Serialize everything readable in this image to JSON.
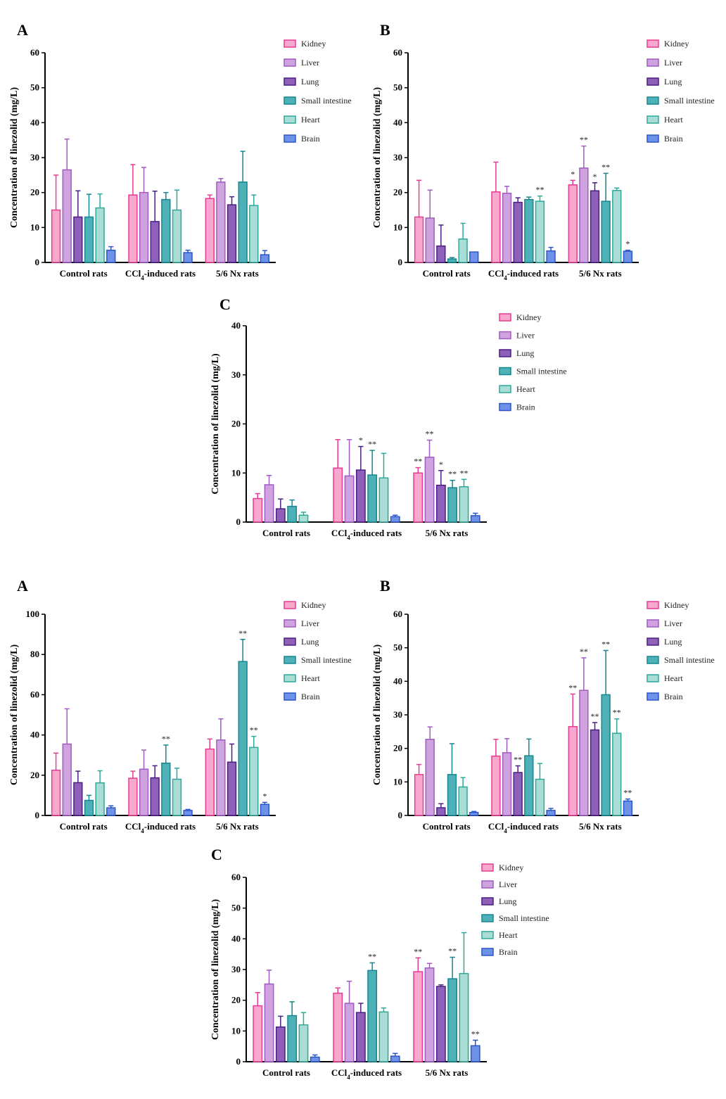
{
  "figure_sets": [
    {
      "set": "top"
    },
    {
      "set": "bottom"
    }
  ],
  "colors": {
    "Kidney": {
      "fill": "#f7a8cc",
      "stroke": "#e93b93"
    },
    "Liver": {
      "fill": "#cfa3df",
      "stroke": "#a05bc0"
    },
    "Lung": {
      "fill": "#8f60b8",
      "stroke": "#4a1e85"
    },
    "Small intestine": {
      "fill": "#4fb1b8",
      "stroke": "#16878f"
    },
    "Heart": {
      "fill": "#a9ddd6",
      "stroke": "#2fa89a"
    },
    "Brain": {
      "fill": "#6e92e8",
      "stroke": "#2a56c8"
    }
  },
  "chart_data": [
    {
      "panel": "A",
      "type": "bar",
      "ylabel": "Concentration of linezolid (mg/L)",
      "ylim": [
        0,
        60
      ],
      "yticks": [
        0,
        10,
        20,
        30,
        40,
        50,
        60
      ],
      "categories": [
        "Control rats",
        "CCl4-induced rats",
        "5/6 Nx rats"
      ],
      "series": [
        {
          "name": "Kidney",
          "values": [
            15,
            19.3,
            18.3
          ],
          "errors": [
            10,
            8.7,
            1
          ],
          "stars": [
            "",
            "",
            ""
          ]
        },
        {
          "name": "Liver",
          "values": [
            26.5,
            20,
            23
          ],
          "errors": [
            8.8,
            7.2,
            1
          ],
          "stars": [
            "",
            "",
            ""
          ]
        },
        {
          "name": "Lung",
          "values": [
            13,
            11.7,
            16.5
          ],
          "errors": [
            7.5,
            8.7,
            2.3
          ],
          "stars": [
            "",
            "",
            ""
          ]
        },
        {
          "name": "Small intestine",
          "values": [
            13,
            18,
            23
          ],
          "errors": [
            6.5,
            2,
            8.8
          ],
          "stars": [
            "",
            "",
            ""
          ]
        },
        {
          "name": "Heart",
          "values": [
            15.6,
            15,
            16.3
          ],
          "errors": [
            4,
            5.7,
            3
          ],
          "stars": [
            "",
            "",
            ""
          ]
        },
        {
          "name": "Brain",
          "values": [
            3.5,
            2.8,
            2.2
          ],
          "errors": [
            1,
            0.7,
            1.2
          ],
          "stars": [
            "",
            "",
            ""
          ]
        }
      ]
    },
    {
      "panel": "B",
      "type": "bar",
      "ylabel": "Concentration of linezolid (mg/L)",
      "ylim": [
        0,
        60
      ],
      "yticks": [
        0,
        10,
        20,
        30,
        40,
        50,
        60
      ],
      "categories": [
        "Control rats",
        "CCl4-induced rats",
        "5/6 Nx rats"
      ],
      "series": [
        {
          "name": "Kidney",
          "values": [
            13,
            20.2,
            22.2
          ],
          "errors": [
            10.5,
            8.5,
            1.3
          ],
          "stars": [
            "",
            "",
            "*"
          ]
        },
        {
          "name": "Liver",
          "values": [
            12.7,
            19.8,
            27
          ],
          "errors": [
            8,
            2,
            6.3
          ],
          "stars": [
            "",
            "",
            "**"
          ]
        },
        {
          "name": "Lung",
          "values": [
            4.7,
            17.2,
            20.5
          ],
          "errors": [
            6,
            1.3,
            2.3
          ],
          "stars": [
            "",
            "",
            "*"
          ]
        },
        {
          "name": "Small intestine",
          "values": [
            1,
            18,
            17.5
          ],
          "errors": [
            0.4,
            0.7,
            8
          ],
          "stars": [
            "",
            "",
            "**"
          ]
        },
        {
          "name": "Heart",
          "values": [
            6.7,
            17.5,
            20.6
          ],
          "errors": [
            4.5,
            1.5,
            0.7
          ],
          "stars": [
            "",
            "**",
            ""
          ]
        },
        {
          "name": "Brain",
          "values": [
            3,
            3.3,
            3.2
          ],
          "errors": [
            0,
            1,
            0.3
          ],
          "stars": [
            "",
            "",
            "*"
          ]
        }
      ]
    },
    {
      "panel": "C",
      "type": "bar",
      "ylabel": "Concentration of linezolid (mg/L)",
      "ylim": [
        0,
        40
      ],
      "yticks": [
        0,
        10,
        20,
        30,
        40
      ],
      "categories": [
        "Control rats",
        "CCl4-induced rats",
        "5/6 Nx rats"
      ],
      "series": [
        {
          "name": "Kidney",
          "values": [
            4.8,
            11,
            10
          ],
          "errors": [
            1,
            5.8,
            1.1
          ],
          "stars": [
            "",
            "",
            "**"
          ]
        },
        {
          "name": "Liver",
          "values": [
            7.6,
            9.4,
            13.2
          ],
          "errors": [
            1.9,
            7.4,
            3.5
          ],
          "stars": [
            "",
            "",
            "**"
          ]
        },
        {
          "name": "Lung",
          "values": [
            2.7,
            10.6,
            7.5
          ],
          "errors": [
            2,
            4.8,
            3
          ],
          "stars": [
            "",
            "*",
            "*"
          ]
        },
        {
          "name": "Small intestine",
          "values": [
            3.2,
            9.6,
            7
          ],
          "errors": [
            1.3,
            5,
            1.5
          ],
          "stars": [
            "",
            "**",
            "**"
          ]
        },
        {
          "name": "Heart",
          "values": [
            1.4,
            9,
            7.2
          ],
          "errors": [
            0.6,
            5,
            1.5
          ],
          "stars": [
            "",
            "",
            "**"
          ]
        },
        {
          "name": "Brain",
          "values": [
            0,
            1.1,
            1.3
          ],
          "errors": [
            0,
            0.3,
            0.5
          ],
          "stars": [
            "",
            "",
            ""
          ]
        }
      ]
    },
    {
      "panel": "A",
      "type": "bar",
      "ylabel": "Concentration of linezolid (mg/L)",
      "ylim": [
        0,
        100
      ],
      "yticks": [
        0,
        20,
        40,
        60,
        80,
        100
      ],
      "categories": [
        "Control rats",
        "CCl4-induced rats",
        "5/6 Nx rats"
      ],
      "series": [
        {
          "name": "Kidney",
          "values": [
            22.5,
            18.5,
            33
          ],
          "errors": [
            8.5,
            3.5,
            5
          ],
          "stars": [
            "",
            "",
            ""
          ]
        },
        {
          "name": "Liver",
          "values": [
            35.5,
            23,
            37.5
          ],
          "errors": [
            17.5,
            9.5,
            10.5
          ],
          "stars": [
            "",
            "",
            ""
          ]
        },
        {
          "name": "Lung",
          "values": [
            16.3,
            18.7,
            26.5
          ],
          "errors": [
            5.7,
            6,
            9
          ],
          "stars": [
            "",
            "",
            ""
          ]
        },
        {
          "name": "Small intestine",
          "values": [
            7.5,
            26,
            76.5
          ],
          "errors": [
            2.5,
            9,
            11
          ],
          "stars": [
            "",
            "**",
            "**"
          ]
        },
        {
          "name": "Heart",
          "values": [
            16.2,
            18,
            33.8
          ],
          "errors": [
            6,
            5.5,
            5.5
          ],
          "stars": [
            "",
            "",
            "**"
          ]
        },
        {
          "name": "Brain",
          "values": [
            3.8,
            2.5,
            5.5
          ],
          "errors": [
            1,
            0.5,
            1
          ],
          "stars": [
            "",
            "",
            "*"
          ]
        }
      ]
    },
    {
      "panel": "B",
      "type": "bar",
      "ylabel": "Concentration of linezolid (mg/L)",
      "ylim": [
        0,
        60
      ],
      "yticks": [
        0,
        10,
        20,
        30,
        40,
        50,
        60
      ],
      "categories": [
        "Control rats",
        "CCl4-induced rats",
        "5/6 Nx rats"
      ],
      "series": [
        {
          "name": "Kidney",
          "values": [
            12.2,
            17.7,
            26.5
          ],
          "errors": [
            3,
            5,
            9.7
          ],
          "stars": [
            "",
            "",
            "**"
          ]
        },
        {
          "name": "Liver",
          "values": [
            22.7,
            18.7,
            37.3
          ],
          "errors": [
            3.7,
            4.2,
            9.7
          ],
          "stars": [
            "",
            "",
            "**"
          ]
        },
        {
          "name": "Lung",
          "values": [
            2.3,
            12.8,
            25.5
          ],
          "errors": [
            1.2,
            2,
            2.2
          ],
          "stars": [
            "",
            "**",
            "**"
          ]
        },
        {
          "name": "Small intestine",
          "values": [
            12.2,
            17.8,
            36
          ],
          "errors": [
            9.2,
            5,
            13.2
          ],
          "stars": [
            "",
            "",
            "**"
          ]
        },
        {
          "name": "Heart",
          "values": [
            8.5,
            10.8,
            24.5
          ],
          "errors": [
            2.8,
            4.7,
            4.3
          ],
          "stars": [
            "",
            "",
            "**"
          ]
        },
        {
          "name": "Brain",
          "values": [
            0.9,
            1.5,
            4.3
          ],
          "errors": [
            0.3,
            0.6,
            0.6
          ],
          "stars": [
            "",
            "",
            "**"
          ]
        }
      ]
    },
    {
      "panel": "C",
      "type": "bar",
      "ylabel": "Concentration of linezolid (mg/L)",
      "ylim": [
        0,
        60
      ],
      "yticks": [
        0,
        10,
        20,
        30,
        40,
        50,
        60
      ],
      "categories": [
        "Control rats",
        "CCl4-induced rats",
        "5/6 Nx rats"
      ],
      "series": [
        {
          "name": "Kidney",
          "values": [
            18.2,
            22.3,
            29.3
          ],
          "errors": [
            4.3,
            1.7,
            4.5
          ],
          "stars": [
            "",
            "",
            "**"
          ]
        },
        {
          "name": "Liver",
          "values": [
            25.3,
            19,
            30.5
          ],
          "errors": [
            4.5,
            7.2,
            1.5
          ],
          "stars": [
            "",
            "",
            ""
          ]
        },
        {
          "name": "Lung",
          "values": [
            11.3,
            16,
            24.5
          ],
          "errors": [
            3.5,
            3,
            0.5
          ],
          "stars": [
            "",
            "",
            ""
          ]
        },
        {
          "name": "Small intestine",
          "values": [
            15,
            29.7,
            27
          ],
          "errors": [
            4.5,
            2.5,
            7
          ],
          "stars": [
            "",
            "**",
            "**"
          ]
        },
        {
          "name": "Heart",
          "values": [
            12,
            16.2,
            28.7
          ],
          "errors": [
            4,
            1.3,
            13.3
          ],
          "stars": [
            "",
            "",
            ""
          ]
        },
        {
          "name": "Brain",
          "values": [
            1.5,
            1.8,
            5.2
          ],
          "errors": [
            0.7,
            0.9,
            1.8
          ],
          "stars": [
            "",
            "",
            "**"
          ]
        }
      ]
    }
  ]
}
